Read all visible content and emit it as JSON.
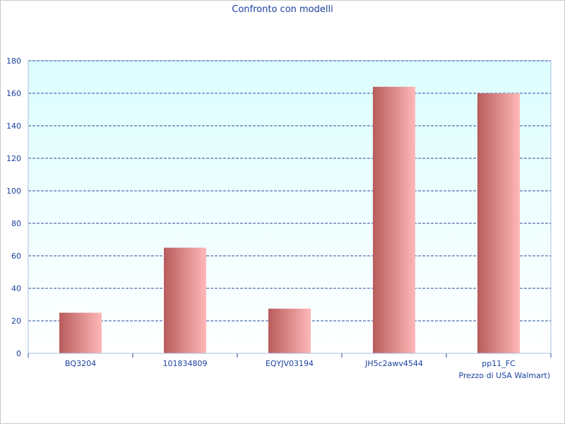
{
  "chart_data": {
    "type": "bar",
    "title": "Confronto con modelli",
    "xlabel": "Prezzo di USA Walmart)",
    "ylabel": "",
    "categories": [
      "BQ3204",
      "101834809",
      "EQYJV03194",
      "JH5c2awv4544",
      "pp11_FC"
    ],
    "values": [
      25,
      65,
      27.5,
      164,
      160
    ],
    "ylim": [
      0,
      180
    ],
    "yticks": [
      0,
      20,
      40,
      60,
      80,
      100,
      120,
      140,
      160,
      180
    ],
    "grid": true,
    "legend": "none",
    "colors": {
      "bar_dark": "#b85c5c",
      "bar_light": "#ffb8b8",
      "plot_bg_top": "#dcfefe",
      "plot_bg_bottom": "#ffffff",
      "grid": "#2a4a9a",
      "text": "#1a3f9e",
      "axis": "#a9bfe0"
    }
  }
}
